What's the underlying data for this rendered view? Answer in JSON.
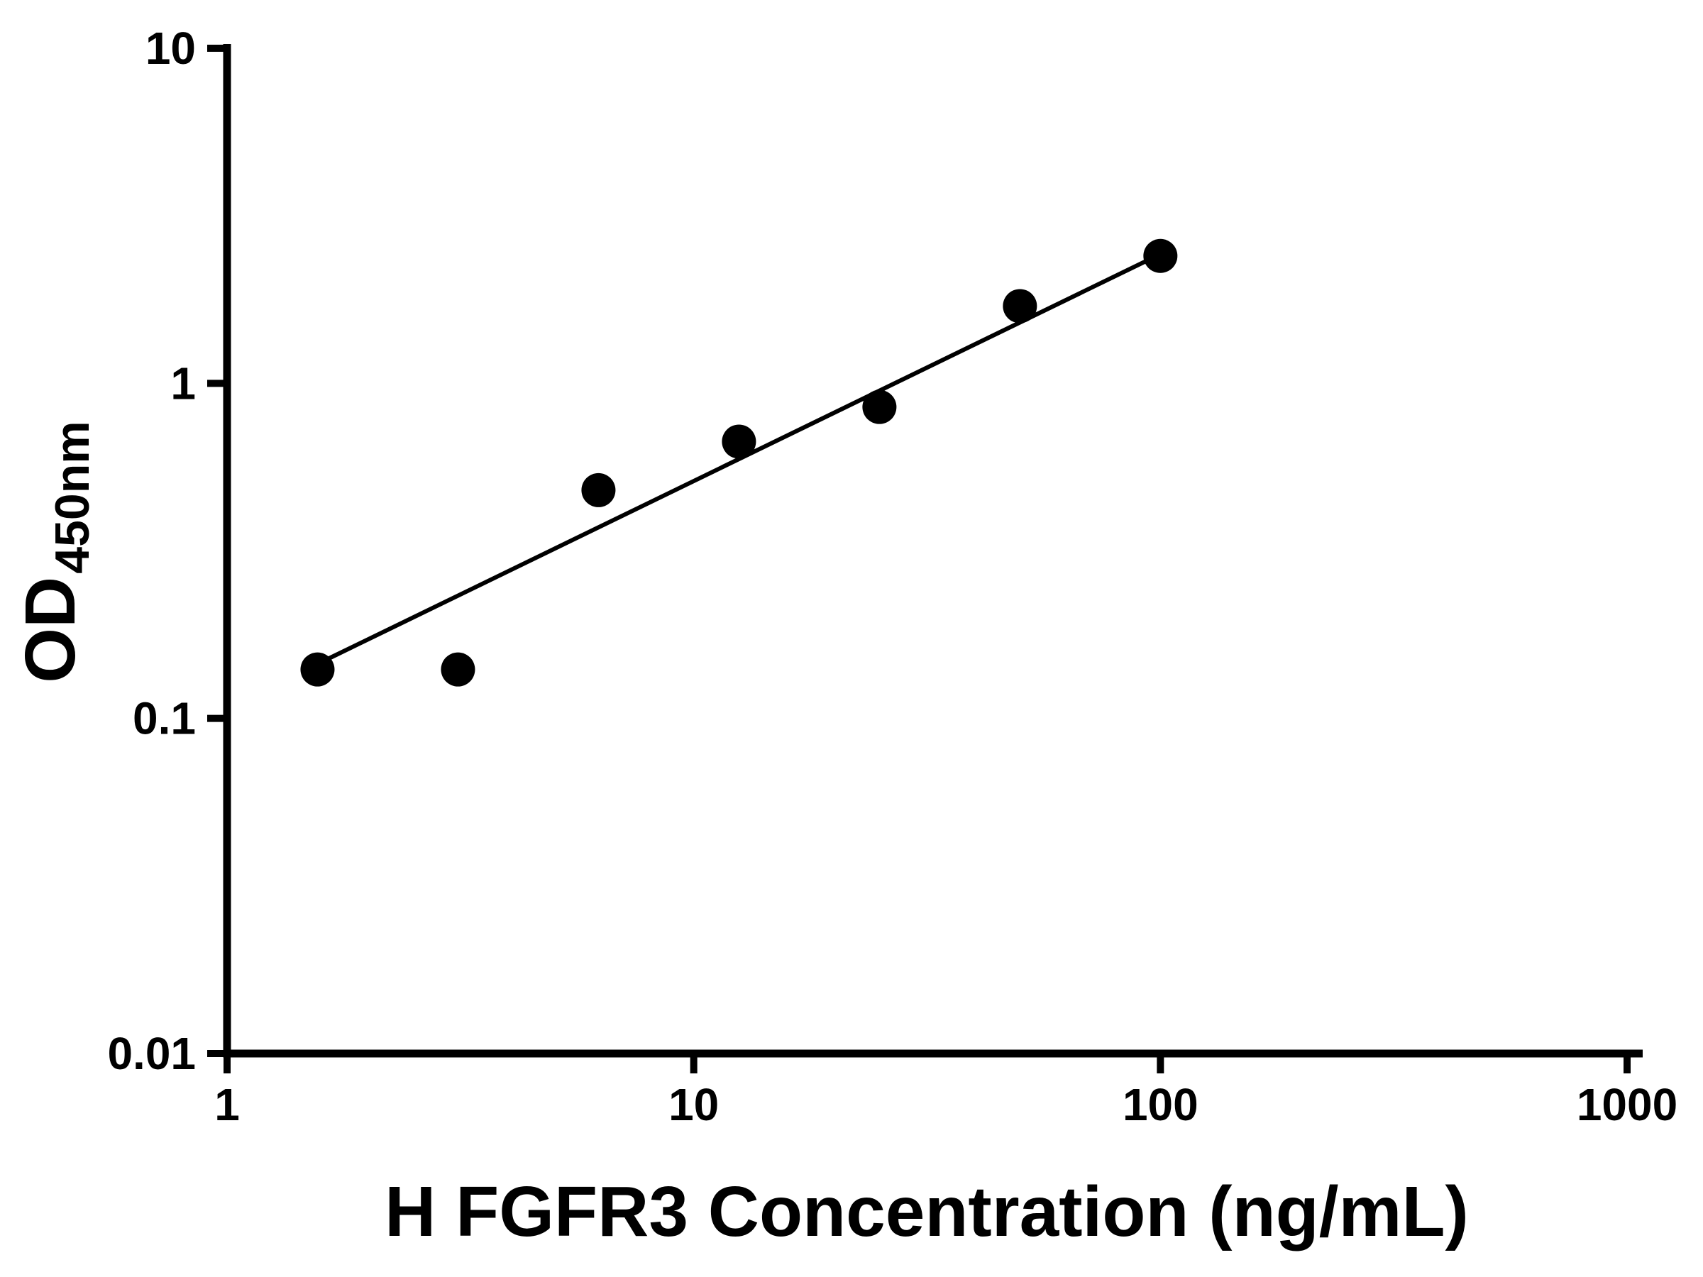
{
  "page": {
    "background_color": "#ffffff",
    "accent_color": "#000000"
  },
  "chart_data": {
    "type": "scatter",
    "title": "",
    "xlabel": "H FGFR3 Concentration (ng/mL)",
    "ylabel_base": "OD",
    "ylabel_sub": "450nm",
    "x_scale": "log",
    "y_scale": "log",
    "xlim": [
      1,
      1000
    ],
    "ylim": [
      0.01,
      10
    ],
    "x_ticks": [
      1,
      10,
      100,
      1000
    ],
    "x_tick_labels": [
      "1",
      "10",
      "100",
      "1000"
    ],
    "y_ticks": [
      0.01,
      0.1,
      1,
      10
    ],
    "y_tick_labels": [
      "0.01",
      "0.1",
      "1",
      "10"
    ],
    "grid": false,
    "legend": false,
    "axis_color": "#000000",
    "marker_color": "#000000",
    "line_color": "#000000",
    "series": [
      {
        "name": "standard-curve-points",
        "kind": "scatter",
        "marker": "circle",
        "points": [
          {
            "x": 1.5625,
            "y": 0.14
          },
          {
            "x": 3.125,
            "y": 0.14
          },
          {
            "x": 6.25,
            "y": 0.48
          },
          {
            "x": 12.5,
            "y": 0.67
          },
          {
            "x": 25,
            "y": 0.85
          },
          {
            "x": 50,
            "y": 1.7
          },
          {
            "x": 100,
            "y": 2.4
          }
        ]
      },
      {
        "name": "fit-line",
        "kind": "line",
        "points": [
          {
            "x": 1.62,
            "y": 0.149
          },
          {
            "x": 100,
            "y": 2.43
          }
        ]
      }
    ]
  }
}
